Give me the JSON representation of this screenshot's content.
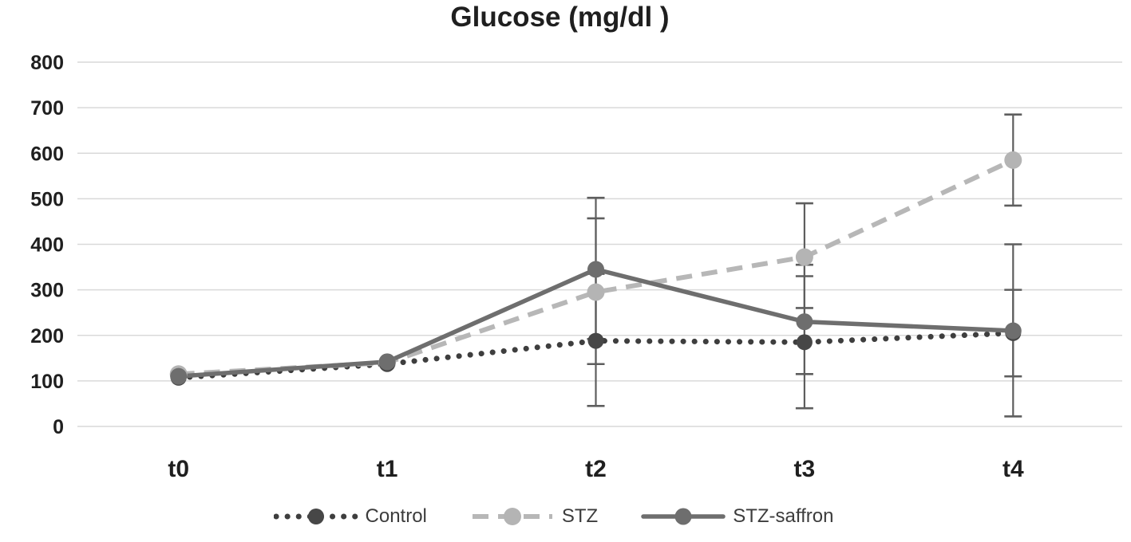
{
  "chart_data": {
    "type": "line",
    "title": "Glucose (mg/dl )",
    "categories": [
      "t0",
      "t1",
      "t2",
      "t3",
      "t4"
    ],
    "xlabel": "",
    "ylabel": "",
    "ylim": [
      0,
      800
    ],
    "y_ticks": [
      0,
      100,
      200,
      300,
      400,
      500,
      600,
      700,
      800
    ],
    "grid": "horizontal",
    "legend_position": "bottom-center",
    "series": [
      {
        "name": "Control",
        "line_style": "dotted",
        "marker": "circle",
        "color": "#3e3e3e",
        "marker_color": "#474747",
        "values": [
          107,
          137,
          188,
          185,
          205
        ],
        "error_bars": [
          null,
          null,
          [
            45,
            335
          ],
          [
            40,
            330
          ],
          [
            110,
            300
          ]
        ]
      },
      {
        "name": "STZ",
        "line_style": "dashed",
        "marker": "circle",
        "color": "#b7b7b7",
        "marker_color": "#b4b4b4",
        "values": [
          115,
          140,
          295,
          372,
          585
        ],
        "error_bars": [
          null,
          null,
          [
            137,
            457
          ],
          [
            260,
            490
          ],
          [
            485,
            685
          ]
        ]
      },
      {
        "name": "STZ-saffron",
        "line_style": "solid",
        "marker": "circle",
        "color": "#6e6e6e",
        "marker_color": "#6e6e6e",
        "values": [
          110,
          142,
          345,
          230,
          210
        ],
        "error_bars": [
          null,
          null,
          [
            192,
            502
          ],
          [
            115,
            355
          ],
          [
            22,
            400
          ]
        ]
      }
    ],
    "colors": {
      "error_bar": "#5e5e5e",
      "gridline": "#d9d9d9",
      "axis_text": "#1f1f1f",
      "legend_text": "#3c3c3c",
      "background": "#ffffff"
    }
  }
}
